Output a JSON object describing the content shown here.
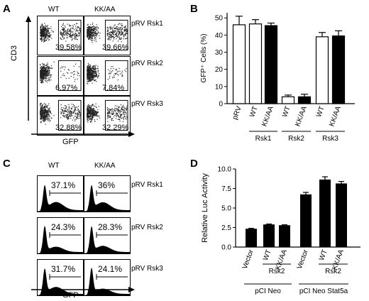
{
  "panels": {
    "A": {
      "letter": "A",
      "col_headers": [
        "WT",
        "KK/AA"
      ],
      "row_labels": [
        "pRV Rsk1",
        "pRV Rsk2",
        "pRV Rsk3"
      ],
      "y_axis": "CD3",
      "x_axis": "GFP",
      "percent_labels": [
        [
          "39.58%",
          "39.66%"
        ],
        [
          "6.97%",
          "7.84%"
        ],
        [
          "32.88%",
          "32.29%"
        ]
      ],
      "gfp_positive_percent": [
        [
          39.58,
          39.66
        ],
        [
          6.97,
          7.84
        ],
        [
          32.88,
          32.29
        ]
      ]
    },
    "B": {
      "letter": "B",
      "ylabel": "GFP⁺ Cells (%)",
      "group_labels": [
        "Rsk1",
        "Rsk2",
        "Rsk3"
      ]
    },
    "C": {
      "letter": "C",
      "col_headers": [
        "WT",
        "KK/AA"
      ],
      "row_labels": [
        "pRV Rsk1",
        "pRV Rsk2",
        "pRV Rsk3"
      ],
      "x_axis": "GFP",
      "percent_labels": [
        [
          "37.1%",
          "36%"
        ],
        [
          "24.3%",
          "28.3%"
        ],
        [
          "31.7%",
          "24.1%"
        ]
      ],
      "gfp_positive_percent": [
        [
          37.1,
          36.0
        ],
        [
          24.3,
          28.3
        ],
        [
          31.7,
          24.1
        ]
      ]
    },
    "D": {
      "letter": "D",
      "ylabel": "Relative Luc Activity",
      "group_labels": [
        "Rsk2",
        "Rsk2"
      ],
      "construct_labels": [
        "pCI Neo",
        "pCI Neo Stat5a"
      ]
    }
  },
  "chart_data": [
    {
      "panel": "B",
      "type": "bar",
      "categories": [
        "pRV",
        "WT",
        "KK/AA",
        "WT",
        "KK/AA",
        "WT",
        "KK/AA"
      ],
      "groups": [
        "",
        "Rsk1",
        "Rsk1",
        "Rsk2",
        "Rsk2",
        "Rsk3",
        "Rsk3"
      ],
      "values": [
        46,
        46.5,
        45.5,
        4,
        4,
        39,
        39.5
      ],
      "errors": [
        5,
        2.5,
        1.5,
        1,
        1.5,
        2.5,
        3
      ],
      "fills": [
        "#ffffff",
        "#ffffff",
        "#000000",
        "#ffffff",
        "#000000",
        "#ffffff",
        "#000000"
      ],
      "xlabel": "",
      "ylabel": "GFP⁺ Cells (%)",
      "ylim": [
        0,
        53
      ],
      "yticks": [
        0,
        10,
        20,
        30,
        40,
        50
      ],
      "grid": false
    },
    {
      "panel": "D",
      "type": "bar",
      "categories": [
        "Vector",
        "WT",
        "KK/AA",
        "Vector",
        "WT",
        "KK/AA"
      ],
      "groups": [
        "pCI Neo",
        "pCI Neo",
        "pCI Neo",
        "pCI Neo Stat5a",
        "pCI Neo Stat5a",
        "pCI Neo Stat5a"
      ],
      "values": [
        2.3,
        2.85,
        2.75,
        6.7,
        8.6,
        8.1
      ],
      "errors": [
        0.1,
        0.1,
        0.1,
        0.3,
        0.4,
        0.3
      ],
      "fills": [
        "#000000",
        "#000000",
        "#000000",
        "#000000",
        "#000000",
        "#000000"
      ],
      "xlabel": "",
      "ylabel": "Relative Luc Activity",
      "ylim": [
        0,
        10
      ],
      "yticks": [
        "0.0",
        "2.5",
        "5.0",
        "7.5",
        "10.0"
      ],
      "grid": false
    }
  ]
}
